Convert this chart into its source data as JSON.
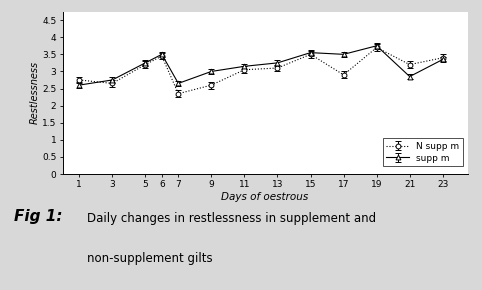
{
  "x": [
    1,
    3,
    5,
    6,
    7,
    9,
    11,
    13,
    15,
    17,
    19,
    21,
    23
  ],
  "n_supp_mean": [
    2.75,
    2.65,
    3.2,
    3.45,
    2.35,
    2.6,
    3.05,
    3.1,
    3.5,
    2.9,
    3.7,
    3.2,
    3.4
  ],
  "n_supp_err": [
    0.1,
    0.1,
    0.1,
    0.1,
    0.1,
    0.1,
    0.1,
    0.1,
    0.1,
    0.1,
    0.1,
    0.1,
    0.1
  ],
  "supp_mean": [
    2.6,
    2.75,
    3.25,
    3.5,
    2.65,
    3.0,
    3.15,
    3.25,
    3.55,
    3.5,
    3.75,
    2.85,
    3.35
  ],
  "supp_err": [
    0.08,
    0.08,
    0.08,
    0.08,
    0.08,
    0.08,
    0.08,
    0.08,
    0.08,
    0.08,
    0.08,
    0.08,
    0.08
  ],
  "x_ticks": [
    1,
    3,
    5,
    6,
    7,
    9,
    11,
    13,
    15,
    17,
    19,
    21,
    23
  ],
  "x_tick_labels": [
    "1",
    "3",
    "5",
    "6",
    "7",
    "9",
    "11",
    "13",
    "15",
    "17",
    "19",
    "21",
    "23"
  ],
  "ylim": [
    0,
    4.75
  ],
  "yticks": [
    0,
    0.5,
    1.0,
    1.5,
    2.0,
    2.5,
    3.0,
    3.5,
    4.0,
    4.5
  ],
  "ytick_labels": [
    "0",
    "0.5",
    "1",
    "1.5",
    "2",
    "2.5",
    "3",
    "3.5",
    "4",
    "4.5"
  ],
  "xlabel": "Days of oestrous",
  "ylabel": "Restlessness",
  "legend_labels": [
    "N supp m",
    "supp m"
  ],
  "caption_bold": "Fig 1:",
  "caption_line1": "Daily changes in restlessness in supplement and",
  "caption_line2": "non-supplement gilts",
  "figsize": [
    4.82,
    2.9
  ],
  "dpi": 100
}
